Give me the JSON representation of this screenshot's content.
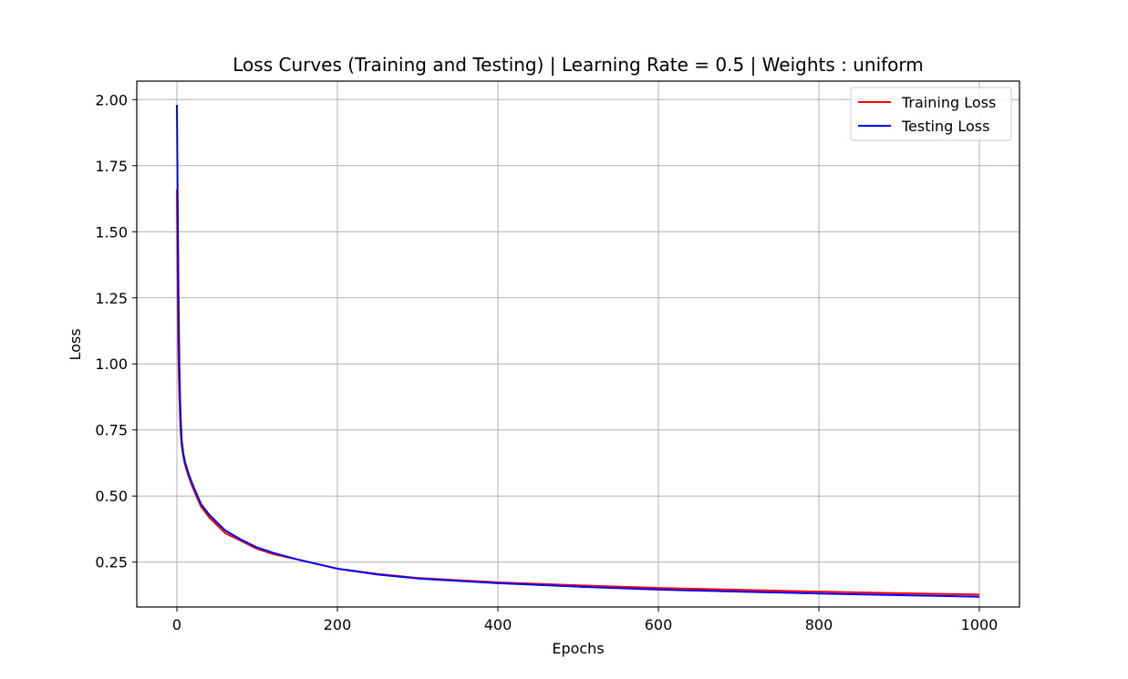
{
  "chart_data": {
    "type": "line",
    "title": "Loss Curves (Training and Testing) | Learning Rate = 0.5 | Weights : uniform",
    "xlabel": "Epochs",
    "ylabel": "Loss",
    "xlim": [
      -50,
      1050
    ],
    "ylim": [
      0.08,
      2.07
    ],
    "xticks": [
      0,
      200,
      400,
      600,
      800,
      1000
    ],
    "xtick_labels": [
      "0",
      "200",
      "400",
      "600",
      "800",
      "1000"
    ],
    "yticks": [
      0.25,
      0.5,
      0.75,
      1.0,
      1.25,
      1.5,
      1.75,
      2.0
    ],
    "ytick_labels": [
      "0.25",
      "0.50",
      "0.75",
      "1.00",
      "1.25",
      "1.50",
      "1.75",
      "2.00"
    ],
    "grid": true,
    "legend_position": "upper right",
    "series": [
      {
        "name": "Training Loss",
        "color": "#ff0000",
        "x": [
          0,
          1,
          2,
          3,
          4,
          5,
          6,
          8,
          10,
          15,
          20,
          30,
          40,
          50,
          60,
          80,
          100,
          120,
          150,
          200,
          250,
          300,
          400,
          500,
          600,
          700,
          800,
          900,
          1000
        ],
        "y": [
          1.66,
          1.25,
          1.02,
          0.88,
          0.79,
          0.73,
          0.69,
          0.65,
          0.62,
          0.57,
          0.53,
          0.46,
          0.42,
          0.39,
          0.36,
          0.33,
          0.3,
          0.28,
          0.26,
          0.225,
          0.205,
          0.19,
          0.173,
          0.162,
          0.152,
          0.145,
          0.138,
          0.132,
          0.127
        ]
      },
      {
        "name": "Testing Loss",
        "color": "#0000ff",
        "x": [
          0,
          1,
          2,
          3,
          4,
          5,
          6,
          8,
          10,
          15,
          20,
          30,
          40,
          50,
          60,
          80,
          100,
          120,
          150,
          200,
          250,
          300,
          400,
          500,
          600,
          700,
          800,
          900,
          1000
        ],
        "y": [
          1.98,
          1.6,
          1.25,
          1.0,
          0.86,
          0.77,
          0.71,
          0.66,
          0.63,
          0.58,
          0.54,
          0.47,
          0.43,
          0.4,
          0.37,
          0.335,
          0.305,
          0.285,
          0.26,
          0.225,
          0.203,
          0.188,
          0.17,
          0.157,
          0.146,
          0.138,
          0.131,
          0.125,
          0.119
        ]
      }
    ]
  }
}
